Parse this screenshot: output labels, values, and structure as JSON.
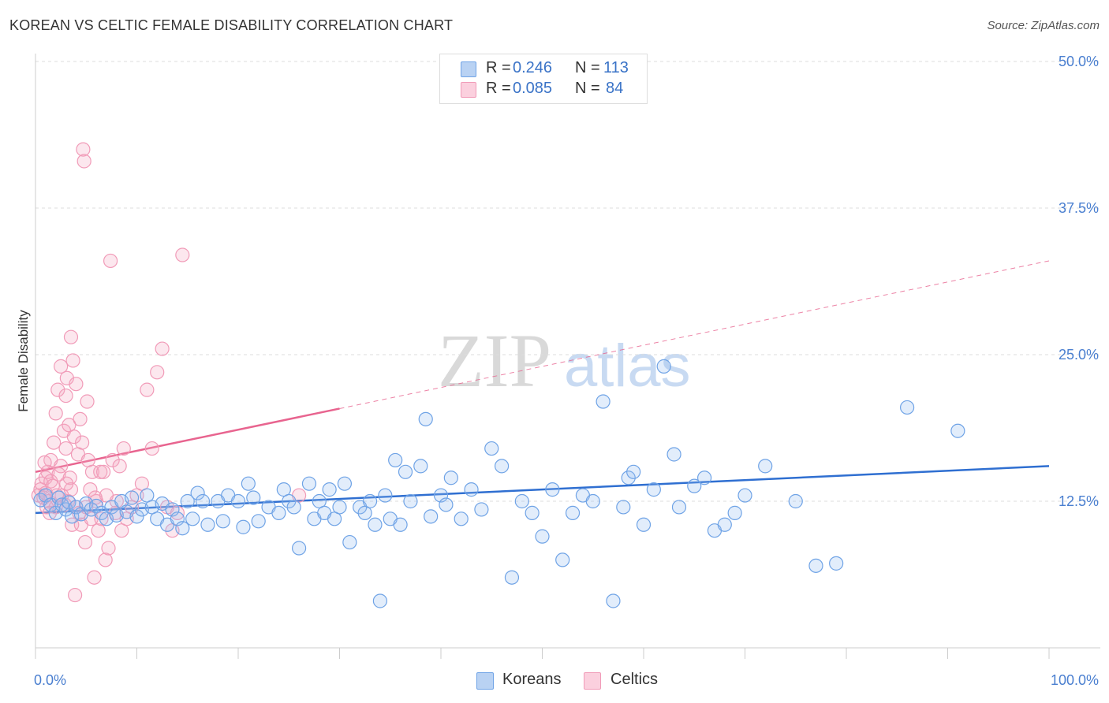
{
  "title": "KOREAN VS CELTIC FEMALE DISABILITY CORRELATION CHART",
  "source": "Source: ZipAtlas.com",
  "watermark": {
    "zip": "ZIP",
    "atlas": "atlas"
  },
  "legend": {
    "korean": {
      "r_label": "R =",
      "r_value": "0.246",
      "n_label": "N =",
      "n_value": "113"
    },
    "celtic": {
      "r_label": "R =",
      "r_value": "0.085",
      "n_label": "N =",
      "n_value": "84"
    }
  },
  "bottom_legend": {
    "korean": "Koreans",
    "celtic": "Celtics"
  },
  "colors": {
    "korean": "#6fa3e6",
    "korean_line": "#2f6fd1",
    "celtic": "#f19bb8",
    "celtic_line": "#e8648f",
    "grid": "#dddddd",
    "tick_label": "#4a7fd0"
  },
  "chart_data": {
    "type": "scatter",
    "title": "KOREAN VS CELTIC FEMALE DISABILITY CORRELATION CHART",
    "xlabel": "",
    "ylabel": "Female Disability",
    "xlim": [
      0,
      100
    ],
    "ylim": [
      0,
      50
    ],
    "x_tick_labels": [
      "0.0%",
      "100.0%"
    ],
    "y_ticks": [
      12.5,
      25.0,
      37.5,
      50.0
    ],
    "y_tick_labels": [
      "12.5%",
      "25.0%",
      "37.5%",
      "50.0%"
    ],
    "series": [
      {
        "name": "Koreans",
        "r": 0.246,
        "n": 113,
        "trend": {
          "x": [
            0,
            100
          ],
          "y": [
            11.5,
            15.5
          ],
          "dashed_from": null
        },
        "points": [
          [
            0.5,
            12.6
          ],
          [
            1.0,
            13.0
          ],
          [
            1.5,
            12.2
          ],
          [
            2.0,
            11.5
          ],
          [
            2.3,
            12.8
          ],
          [
            2.6,
            12.2
          ],
          [
            3.0,
            11.8
          ],
          [
            3.3,
            12.4
          ],
          [
            3.6,
            11.2
          ],
          [
            4.0,
            12.0
          ],
          [
            4.5,
            11.4
          ],
          [
            5.0,
            12.3
          ],
          [
            5.5,
            11.8
          ],
          [
            6.0,
            12.1
          ],
          [
            6.5,
            11.5
          ],
          [
            7.0,
            11.0
          ],
          [
            7.5,
            12.0
          ],
          [
            8.0,
            11.3
          ],
          [
            8.5,
            12.5
          ],
          [
            9.0,
            11.6
          ],
          [
            9.5,
            12.8
          ],
          [
            10.0,
            11.2
          ],
          [
            10.5,
            11.8
          ],
          [
            11.0,
            13.0
          ],
          [
            11.5,
            12.0
          ],
          [
            12.0,
            11.0
          ],
          [
            12.5,
            12.3
          ],
          [
            13.0,
            10.5
          ],
          [
            13.5,
            11.8
          ],
          [
            14.0,
            11.0
          ],
          [
            14.5,
            10.2
          ],
          [
            15.0,
            12.5
          ],
          [
            15.5,
            11.0
          ],
          [
            16.0,
            13.2
          ],
          [
            16.5,
            12.5
          ],
          [
            17.0,
            10.5
          ],
          [
            18.0,
            12.5
          ],
          [
            18.5,
            10.8
          ],
          [
            19.0,
            13.0
          ],
          [
            20.0,
            12.5
          ],
          [
            20.5,
            10.3
          ],
          [
            21.0,
            14.0
          ],
          [
            21.5,
            12.8
          ],
          [
            22.0,
            10.8
          ],
          [
            23.0,
            12.0
          ],
          [
            24.0,
            11.5
          ],
          [
            24.5,
            13.5
          ],
          [
            25.0,
            12.5
          ],
          [
            25.5,
            12.0
          ],
          [
            26.0,
            8.5
          ],
          [
            27.0,
            14.0
          ],
          [
            27.5,
            11.0
          ],
          [
            28.0,
            12.5
          ],
          [
            28.5,
            11.5
          ],
          [
            29.0,
            13.5
          ],
          [
            29.5,
            11.0
          ],
          [
            30.0,
            12.0
          ],
          [
            30.5,
            14.0
          ],
          [
            31.0,
            9.0
          ],
          [
            32.0,
            12.0
          ],
          [
            32.5,
            11.5
          ],
          [
            33.0,
            12.5
          ],
          [
            33.5,
            10.5
          ],
          [
            34.0,
            4.0
          ],
          [
            34.5,
            13.0
          ],
          [
            35.0,
            11.0
          ],
          [
            35.5,
            16.0
          ],
          [
            36.0,
            10.5
          ],
          [
            36.5,
            15.0
          ],
          [
            37.0,
            12.5
          ],
          [
            38.0,
            15.5
          ],
          [
            38.5,
            19.5
          ],
          [
            39.0,
            11.2
          ],
          [
            40.0,
            13.0
          ],
          [
            40.5,
            12.2
          ],
          [
            41.0,
            14.5
          ],
          [
            42.0,
            11.0
          ],
          [
            43.0,
            13.5
          ],
          [
            44.0,
            11.8
          ],
          [
            45.0,
            17.0
          ],
          [
            46.0,
            15.5
          ],
          [
            47.0,
            6.0
          ],
          [
            48.0,
            12.5
          ],
          [
            49.0,
            11.5
          ],
          [
            50.0,
            9.5
          ],
          [
            51.0,
            13.5
          ],
          [
            52.0,
            7.5
          ],
          [
            53.0,
            11.5
          ],
          [
            54.0,
            13.0
          ],
          [
            55.0,
            12.5
          ],
          [
            56.0,
            21.0
          ],
          [
            57.0,
            4.0
          ],
          [
            58.0,
            12.0
          ],
          [
            58.5,
            14.5
          ],
          [
            59.0,
            15.0
          ],
          [
            60.0,
            10.5
          ],
          [
            61.0,
            13.5
          ],
          [
            62.0,
            24.0
          ],
          [
            63.0,
            16.5
          ],
          [
            63.5,
            12.0
          ],
          [
            65.0,
            13.8
          ],
          [
            66.0,
            14.5
          ],
          [
            67.0,
            10.0
          ],
          [
            68.0,
            10.5
          ],
          [
            69.0,
            11.5
          ],
          [
            70.0,
            13.0
          ],
          [
            72.0,
            15.5
          ],
          [
            75.0,
            12.5
          ],
          [
            77.0,
            7.0
          ],
          [
            79.0,
            7.2
          ],
          [
            86.0,
            20.5
          ],
          [
            91.0,
            18.5
          ]
        ]
      },
      {
        "name": "Celtics",
        "r": 0.085,
        "n": 84,
        "trend": {
          "x": [
            0,
            100
          ],
          "y": [
            15.0,
            33.0
          ],
          "dashed_from": 30
        },
        "points": [
          [
            0.3,
            13.0
          ],
          [
            0.5,
            13.5
          ],
          [
            0.6,
            14.0
          ],
          [
            0.8,
            12.8
          ],
          [
            1.0,
            14.5
          ],
          [
            1.0,
            13.2
          ],
          [
            1.2,
            15.0
          ],
          [
            1.3,
            12.5
          ],
          [
            1.5,
            14.2
          ],
          [
            1.5,
            16.0
          ],
          [
            1.7,
            13.8
          ],
          [
            1.8,
            17.5
          ],
          [
            2.0,
            20.0
          ],
          [
            2.0,
            12.0
          ],
          [
            2.2,
            22.0
          ],
          [
            2.3,
            14.8
          ],
          [
            2.5,
            15.5
          ],
          [
            2.5,
            24.0
          ],
          [
            2.6,
            13.0
          ],
          [
            2.8,
            18.5
          ],
          [
            3.0,
            21.5
          ],
          [
            3.0,
            17.0
          ],
          [
            3.1,
            23.0
          ],
          [
            3.2,
            12.5
          ],
          [
            3.3,
            19.0
          ],
          [
            3.4,
            14.5
          ],
          [
            3.5,
            26.5
          ],
          [
            3.5,
            13.5
          ],
          [
            3.6,
            10.5
          ],
          [
            3.7,
            24.5
          ],
          [
            3.8,
            18.0
          ],
          [
            3.9,
            4.5
          ],
          [
            4.0,
            22.5
          ],
          [
            4.0,
            12.0
          ],
          [
            4.2,
            16.5
          ],
          [
            4.3,
            11.5
          ],
          [
            4.4,
            19.5
          ],
          [
            4.5,
            10.5
          ],
          [
            4.6,
            17.5
          ],
          [
            4.7,
            42.5
          ],
          [
            4.8,
            41.5
          ],
          [
            4.9,
            9.0
          ],
          [
            5.0,
            12.0
          ],
          [
            5.1,
            21.0
          ],
          [
            5.2,
            16.0
          ],
          [
            5.4,
            13.5
          ],
          [
            5.5,
            11.0
          ],
          [
            5.6,
            15.0
          ],
          [
            5.8,
            6.0
          ],
          [
            6.0,
            12.5
          ],
          [
            6.2,
            10.0
          ],
          [
            6.4,
            15.0
          ],
          [
            6.5,
            11.0
          ],
          [
            6.7,
            15.0
          ],
          [
            6.9,
            7.5
          ],
          [
            7.0,
            13.0
          ],
          [
            7.2,
            8.5
          ],
          [
            7.4,
            33.0
          ],
          [
            7.6,
            16.0
          ],
          [
            7.9,
            11.5
          ],
          [
            8.0,
            12.5
          ],
          [
            8.3,
            15.5
          ],
          [
            8.5,
            10.0
          ],
          [
            8.7,
            17.0
          ],
          [
            9.0,
            11.0
          ],
          [
            9.5,
            12.0
          ],
          [
            10.0,
            13.0
          ],
          [
            10.5,
            14.0
          ],
          [
            11.0,
            22.0
          ],
          [
            11.5,
            17.0
          ],
          [
            12.0,
            23.5
          ],
          [
            12.5,
            25.5
          ],
          [
            13.0,
            12.0
          ],
          [
            13.5,
            10.0
          ],
          [
            14.0,
            11.5
          ],
          [
            14.5,
            33.5
          ],
          [
            1.1,
            12.0
          ],
          [
            1.4,
            11.5
          ],
          [
            0.9,
            15.8
          ],
          [
            2.1,
            13.0
          ],
          [
            2.9,
            12.2
          ],
          [
            3.05,
            14.0
          ],
          [
            5.9,
            12.8
          ],
          [
            26.0,
            13.0
          ]
        ]
      }
    ]
  }
}
